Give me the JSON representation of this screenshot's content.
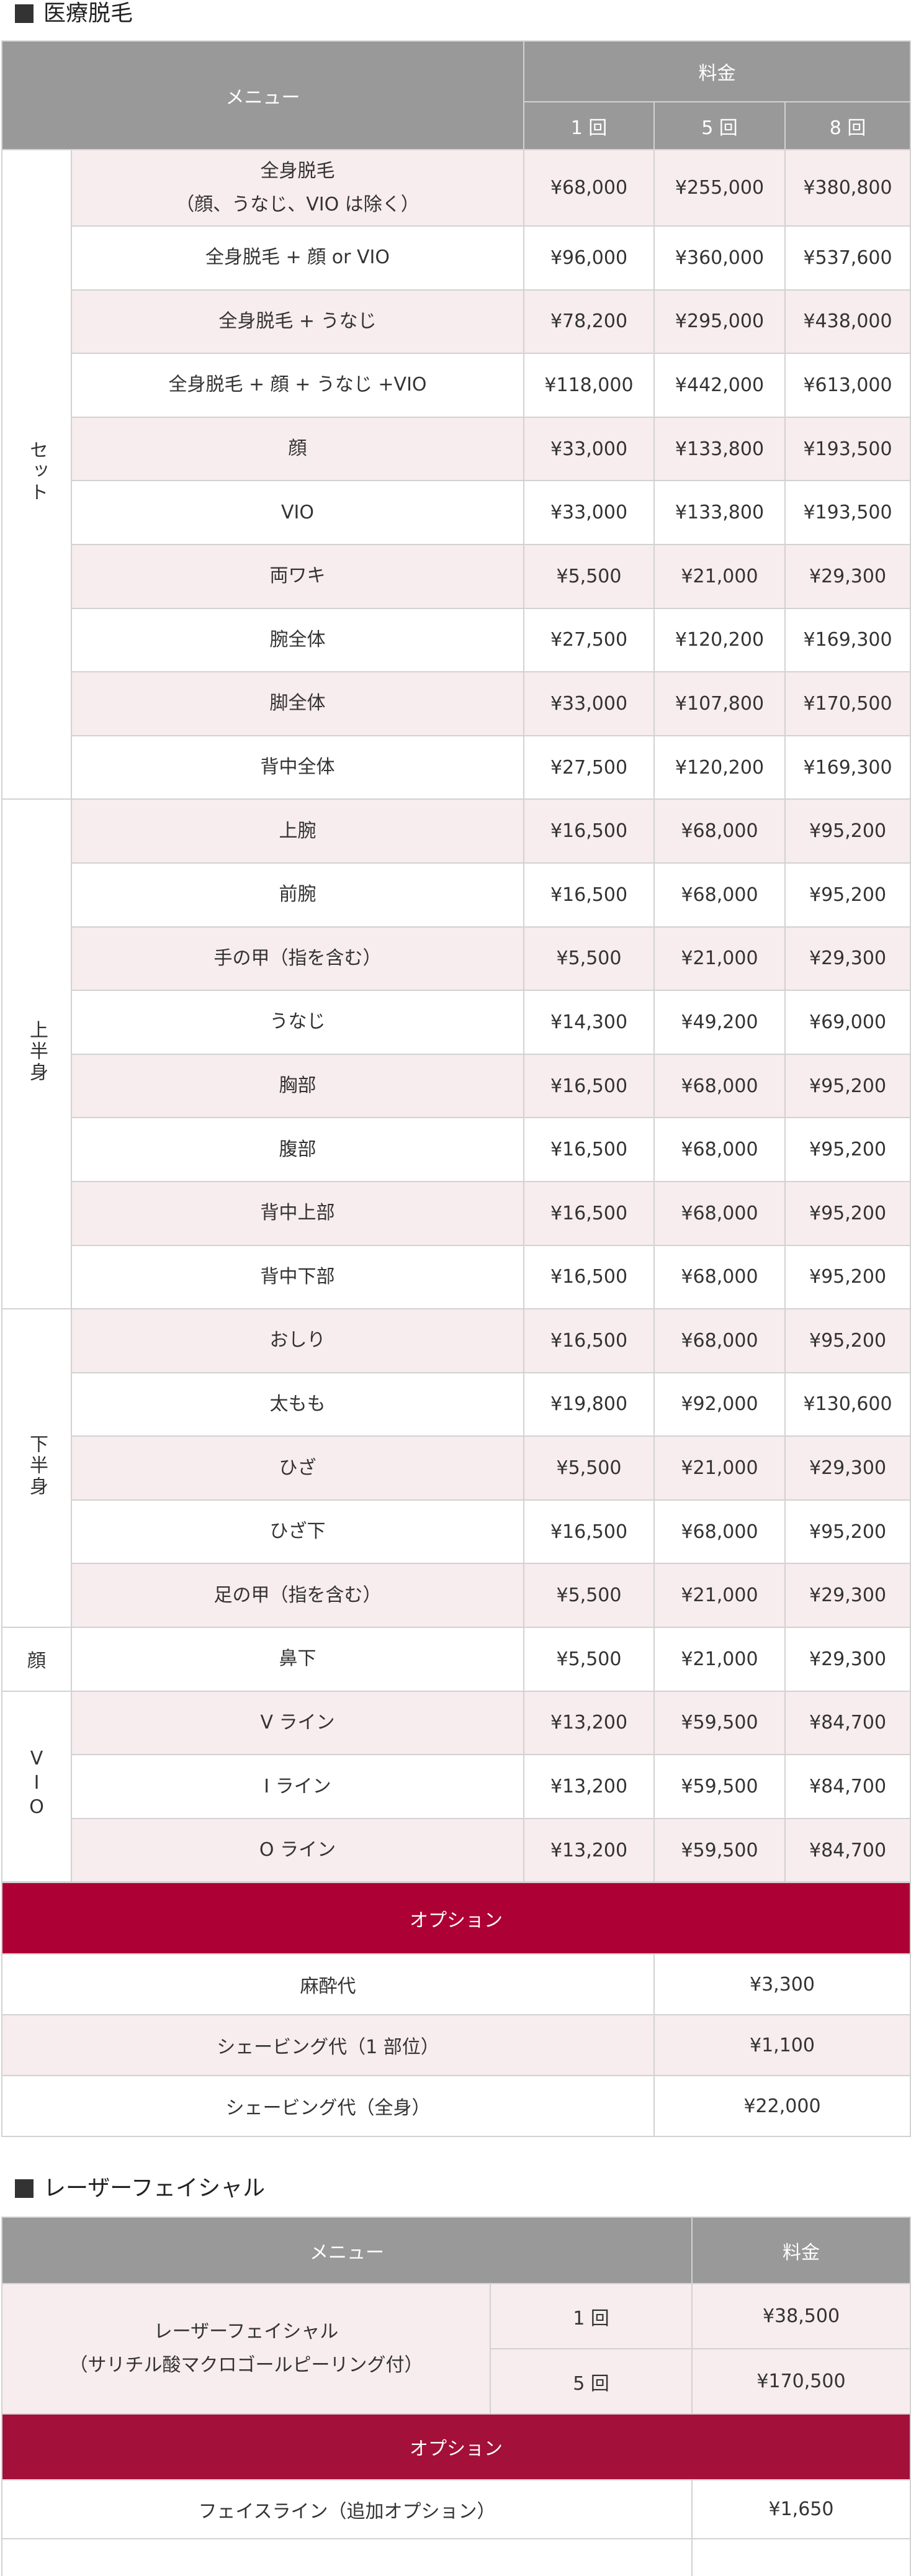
{
  "section1": {
    "title": "医療脱毛",
    "header": {
      "menu": "メニュー",
      "price": "料金",
      "counts": [
        "1 回",
        "5 回",
        "8 回"
      ]
    },
    "groups": [
      {
        "category": "セット",
        "vertical": true,
        "rows": [
          [
            "全身脱毛\n（顔、うなじ、VIO は除く）",
            "¥68,000",
            "¥255,000",
            "¥380,800"
          ],
          [
            "全身脱毛 + 顔 or VIO",
            "¥96,000",
            "¥360,000",
            "¥537,600"
          ],
          [
            "全身脱毛 + うなじ",
            "¥78,200",
            "¥295,000",
            "¥438,000"
          ],
          [
            "全身脱毛 + 顔 + うなじ +VIO",
            "¥118,000",
            "¥442,000",
            "¥613,000"
          ],
          [
            "顔",
            "¥33,000",
            "¥133,800",
            "¥193,500"
          ],
          [
            "VIO",
            "¥33,000",
            "¥133,800",
            "¥193,500"
          ],
          [
            "両ワキ",
            "¥5,500",
            "¥21,000",
            "¥29,300"
          ],
          [
            "腕全体",
            "¥27,500",
            "¥120,200",
            "¥169,300"
          ],
          [
            "脚全体",
            "¥33,000",
            "¥107,800",
            "¥170,500"
          ],
          [
            "背中全体",
            "¥27,500",
            "¥120,200",
            "¥169,300"
          ]
        ]
      },
      {
        "category": "上半身",
        "vertical": true,
        "rows": [
          [
            "上腕",
            "¥16,500",
            "¥68,000",
            "¥95,200"
          ],
          [
            "前腕",
            "¥16,500",
            "¥68,000",
            "¥95,200"
          ],
          [
            "手の甲（指を含む）",
            "¥5,500",
            "¥21,000",
            "¥29,300"
          ],
          [
            "うなじ",
            "¥14,300",
            "¥49,200",
            "¥69,000"
          ],
          [
            "胸部",
            "¥16,500",
            "¥68,000",
            "¥95,200"
          ],
          [
            "腹部",
            "¥16,500",
            "¥68,000",
            "¥95,200"
          ],
          [
            "背中上部",
            "¥16,500",
            "¥68,000",
            "¥95,200"
          ],
          [
            "背中下部",
            "¥16,500",
            "¥68,000",
            "¥95,200"
          ]
        ]
      },
      {
        "category": "下半身",
        "vertical": true,
        "rows": [
          [
            "おしり",
            "¥16,500",
            "¥68,000",
            "¥95,200"
          ],
          [
            "太もも",
            "¥19,800",
            "¥92,000",
            "¥130,600"
          ],
          [
            "ひざ",
            "¥5,500",
            "¥21,000",
            "¥29,300"
          ],
          [
            "ひざ下",
            "¥16,500",
            "¥68,000",
            "¥95,200"
          ],
          [
            "足の甲（指を含む）",
            "¥5,500",
            "¥21,000",
            "¥29,300"
          ]
        ]
      },
      {
        "category": "顔",
        "vertical": false,
        "rows": [
          [
            "鼻下",
            "¥5,500",
            "¥21,000",
            "¥29,300"
          ]
        ]
      },
      {
        "category": "VIO",
        "vertical": true,
        "rows": [
          [
            "V ライン",
            "¥13,200",
            "¥59,500",
            "¥84,700"
          ],
          [
            "I ライン",
            "¥13,200",
            "¥59,500",
            "¥84,700"
          ],
          [
            "O ライン",
            "¥13,200",
            "¥59,500",
            "¥84,700"
          ]
        ]
      }
    ],
    "options": {
      "label": "オプション",
      "rows": [
        [
          "麻酔代",
          "¥3,300"
        ],
        [
          "シェービング代（1 部位）",
          "¥1,100"
        ],
        [
          "シェービング代（全身）",
          "¥22,000"
        ]
      ]
    }
  },
  "section2": {
    "title": "レーザーフェイシャル",
    "header": {
      "menu": "メニュー",
      "price": "料金"
    },
    "item": {
      "name": "レーザーフェイシャル\n（サリチル酸マクロゴールピーリング付）",
      "plans": [
        [
          "1 回",
          "¥38,500"
        ],
        [
          "5 回",
          "¥170,500"
        ]
      ]
    },
    "options": {
      "label": "オプション",
      "rows": [
        [
          "フェイスライン（追加オプション）",
          "¥1,650"
        ]
      ]
    }
  },
  "colors": {
    "header": "#999999",
    "stripe": "#f7ecee",
    "option1": "#ad0035",
    "option2": "#a31039",
    "border": "#d2d2d2"
  }
}
